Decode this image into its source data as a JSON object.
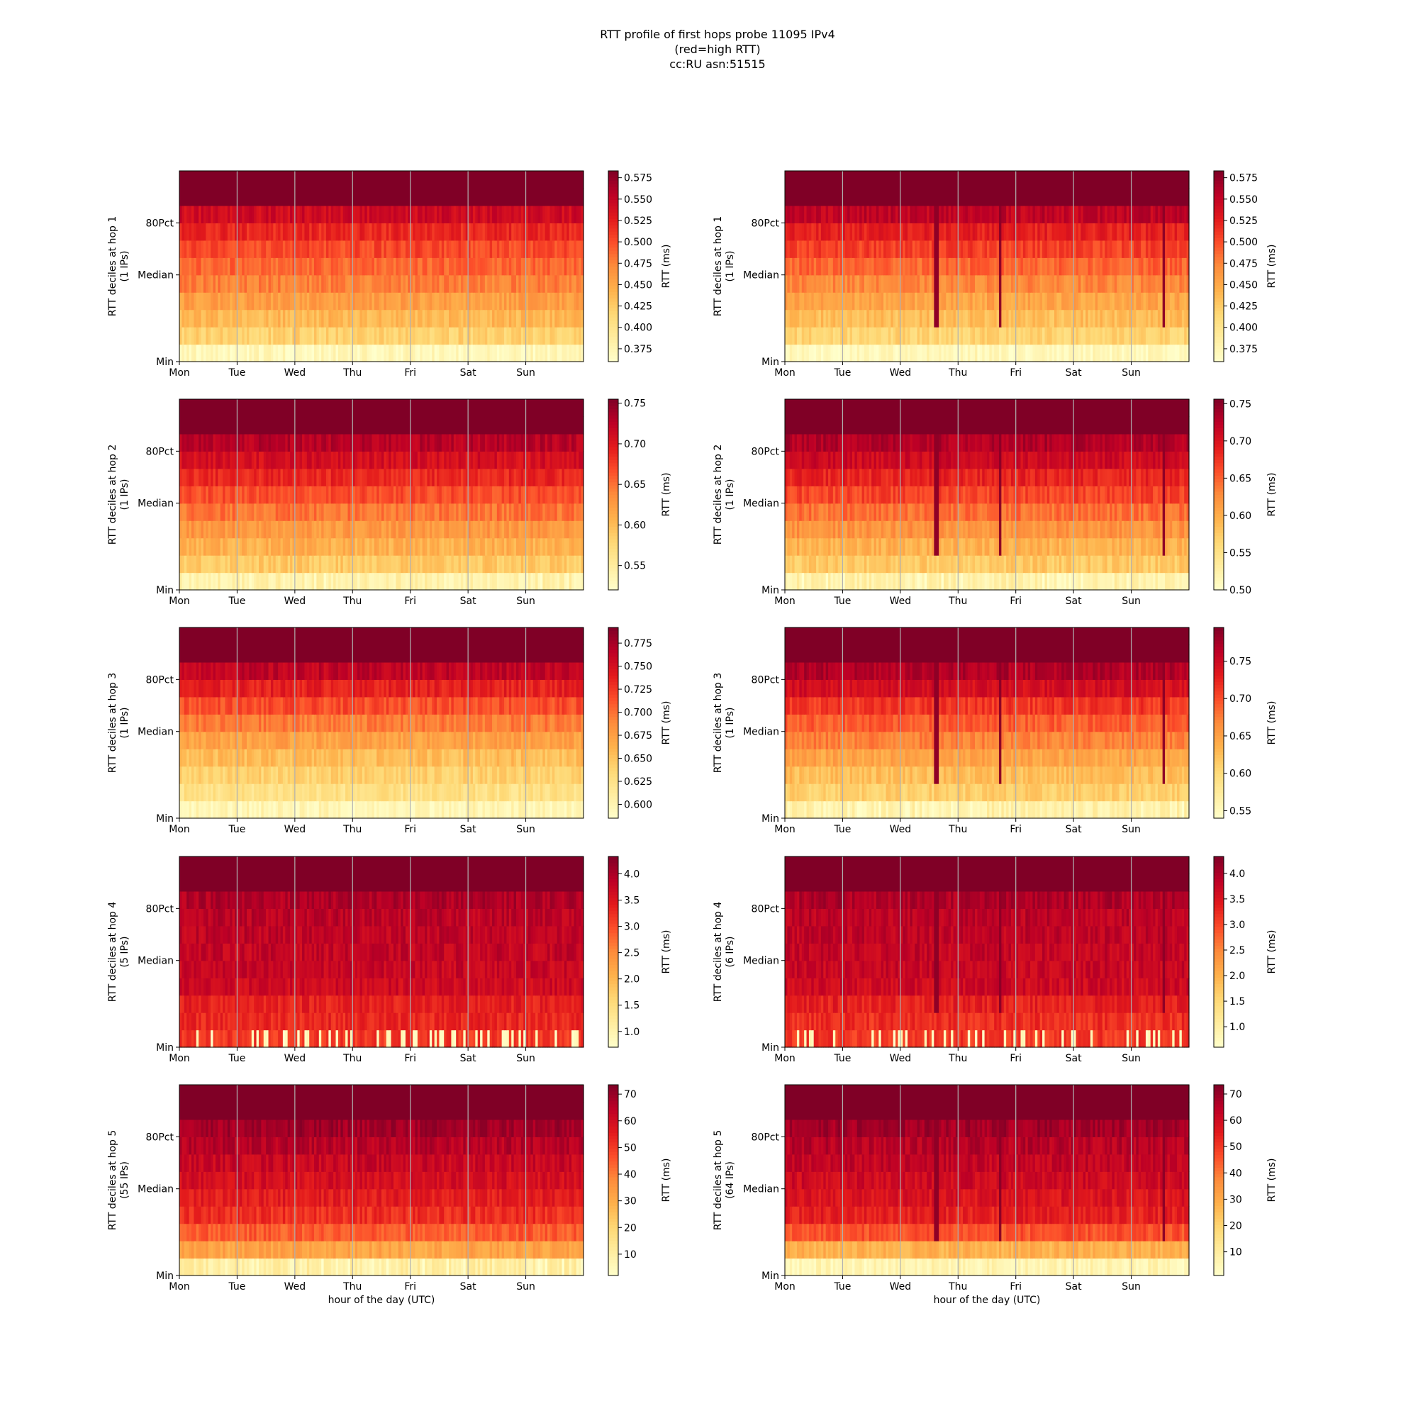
{
  "title_lines": [
    "RTT profile of first hops probe 11095 IPv4",
    "(red=high RTT)",
    "cc:RU asn:51515"
  ],
  "chart_data": {
    "type": "heatmap",
    "x_tick_labels": [
      "Mon",
      "Tue",
      "Wed",
      "Thu",
      "Fri",
      "Sat",
      "Sun"
    ],
    "y_tick_labels": [
      "Min",
      "Median",
      "80Pct"
    ],
    "x_axis_label": "hour of the day (UTC)",
    "colorbar_label": "RTT (ms)",
    "colormap": [
      "#ffffcc",
      "#ffeda0",
      "#fed976",
      "#feb24c",
      "#fd8d3c",
      "#fc4e2a",
      "#e31a1c",
      "#bd0026",
      "#800026"
    ],
    "deciles": 11,
    "hours": 168,
    "panels": [
      {
        "ylabel": [
          "RTT deciles at hop 1",
          "(1 IPs)"
        ],
        "cb_min": 0.36,
        "cb_max": 0.583,
        "cb_ticks": [
          "0.375",
          "0.400",
          "0.425",
          "0.450",
          "0.475",
          "0.500",
          "0.525",
          "0.550",
          "0.575"
        ],
        "cb_tick_values": [
          0.375,
          0.4,
          0.425,
          0.45,
          0.475,
          0.5,
          0.525,
          0.55,
          0.575
        ]
      },
      {
        "ylabel": [
          "RTT deciles at hop 1",
          "(1 IPs)"
        ],
        "cb_min": 0.36,
        "cb_max": 0.583,
        "cb_ticks": [
          "0.375",
          "0.400",
          "0.425",
          "0.450",
          "0.475",
          "0.500",
          "0.525",
          "0.550",
          "0.575"
        ],
        "cb_tick_values": [
          0.375,
          0.4,
          0.425,
          0.45,
          0.475,
          0.5,
          0.525,
          0.55,
          0.575
        ]
      },
      {
        "ylabel": [
          "RTT deciles at hop 2",
          "(1 IPs)"
        ],
        "cb_min": 0.52,
        "cb_max": 0.755,
        "cb_ticks": [
          "0.55",
          "0.60",
          "0.65",
          "0.70",
          "0.75"
        ],
        "cb_tick_values": [
          0.55,
          0.6,
          0.65,
          0.7,
          0.75
        ]
      },
      {
        "ylabel": [
          "RTT deciles at hop 2",
          "(1 IPs)"
        ],
        "cb_min": 0.5,
        "cb_max": 0.756,
        "cb_ticks": [
          "0.50",
          "0.55",
          "0.60",
          "0.65",
          "0.70",
          "0.75"
        ],
        "cb_tick_values": [
          0.5,
          0.55,
          0.6,
          0.65,
          0.7,
          0.75
        ]
      },
      {
        "ylabel": [
          "RTT deciles at hop 3",
          "(1 IPs)"
        ],
        "cb_min": 0.585,
        "cb_max": 0.792,
        "cb_ticks": [
          "0.600",
          "0.625",
          "0.650",
          "0.675",
          "0.700",
          "0.725",
          "0.750",
          "0.775"
        ],
        "cb_tick_values": [
          0.6,
          0.625,
          0.65,
          0.675,
          0.7,
          0.725,
          0.75,
          0.775
        ]
      },
      {
        "ylabel": [
          "RTT deciles at hop 3",
          "(1 IPs)"
        ],
        "cb_min": 0.54,
        "cb_max": 0.795,
        "cb_ticks": [
          "0.55",
          "0.60",
          "0.65",
          "0.70",
          "0.75"
        ],
        "cb_tick_values": [
          0.55,
          0.6,
          0.65,
          0.7,
          0.75
        ]
      },
      {
        "ylabel": [
          "RTT deciles at hop 4",
          "(5 IPs)"
        ],
        "cb_min": 0.7,
        "cb_max": 4.33,
        "cb_ticks": [
          "1.0",
          "1.5",
          "2.0",
          "2.5",
          "3.0",
          "3.5",
          "4.0"
        ],
        "cb_tick_values": [
          1.0,
          1.5,
          2.0,
          2.5,
          3.0,
          3.5,
          4.0
        ]
      },
      {
        "ylabel": [
          "RTT deciles at hop 4",
          "(6 IPs)"
        ],
        "cb_min": 0.6,
        "cb_max": 4.33,
        "cb_ticks": [
          "1.0",
          "1.5",
          "2.0",
          "2.5",
          "3.0",
          "3.5",
          "4.0"
        ],
        "cb_tick_values": [
          1.0,
          1.5,
          2.0,
          2.5,
          3.0,
          3.5,
          4.0
        ]
      },
      {
        "ylabel": [
          "RTT deciles at hop 5",
          "(55 IPs)"
        ],
        "cb_min": 2,
        "cb_max": 73.5,
        "cb_ticks": [
          "10",
          "20",
          "30",
          "40",
          "50",
          "60",
          "70"
        ],
        "cb_tick_values": [
          10,
          20,
          30,
          40,
          50,
          60,
          70
        ]
      },
      {
        "ylabel": [
          "RTT deciles at hop 5",
          "(64 IPs)"
        ],
        "cb_min": 1,
        "cb_max": 73.5,
        "cb_ticks": [
          "10",
          "20",
          "30",
          "40",
          "50",
          "60",
          "70"
        ],
        "cb_tick_values": [
          10,
          20,
          30,
          40,
          50,
          60,
          70
        ]
      }
    ]
  }
}
